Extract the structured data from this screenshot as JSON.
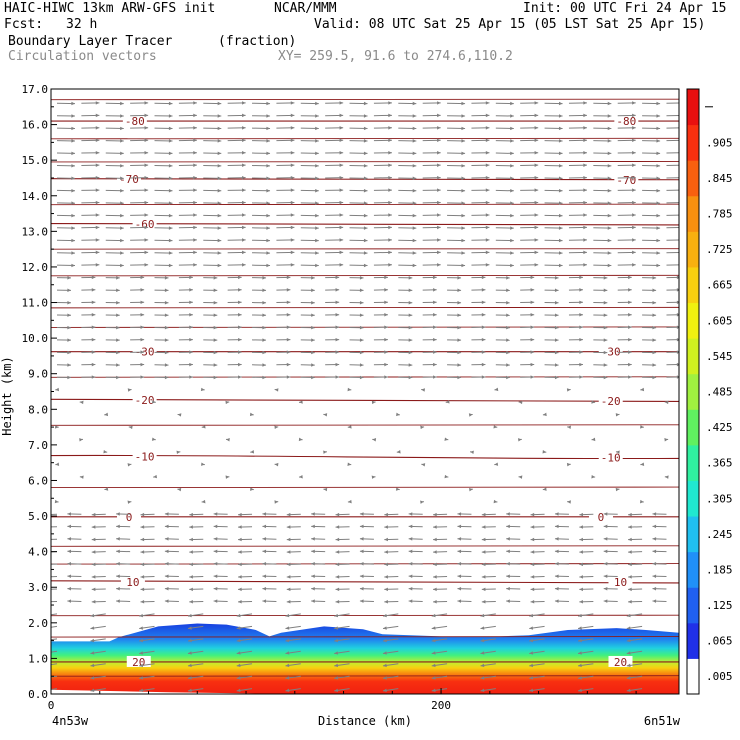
{
  "header": {
    "model": "HAIC-HIWC 13km ARW-GFS init",
    "org": "NCAR/MMM",
    "init": "Init: 00 UTC Fri 24 Apr 15",
    "fcst_label": "Fcst:",
    "fcst_value": "32 h",
    "valid": "Valid: 08 UTC Sat 25 Apr 15 (05 LST Sat 25 Apr 15)",
    "field_name": "Boundary Layer Tracer",
    "field_unit": "(fraction)",
    "overlay_name": "Circulation vectors",
    "xy_range": "XY= 259.5, 91.6 to 274.6,110.2"
  },
  "chart_data": {
    "type": "heatmap",
    "title": "Boundary Layer Tracer",
    "ylabel": "Height (km)",
    "xlabel": "Distance (km)",
    "x_start_label": "4n53w",
    "x_end_label": "6n51w",
    "xlim": [
      0,
      322
    ],
    "ylim": [
      0,
      17
    ],
    "x_ticks": [
      0,
      200
    ],
    "x_tick_labels": [
      "0",
      "200"
    ],
    "y_ticks": [
      0,
      1,
      2,
      3,
      4,
      5,
      6,
      7,
      8,
      9,
      10,
      11,
      12,
      13,
      14,
      15,
      16,
      17
    ],
    "y_tick_labels": [
      "0.0",
      "1.0",
      "2.0",
      "3.0",
      "4.0",
      "5.0",
      "6.0",
      "7.0",
      "8.0",
      "9.0",
      "10.0",
      "11.0",
      "12.0",
      "13.0",
      "14.0",
      "15.0",
      "16.0",
      "17.0"
    ],
    "colorbar": {
      "labels": [
        ".005",
        ".065",
        ".125",
        ".185",
        ".245",
        ".305",
        ".365",
        ".425",
        ".485",
        ".545",
        ".605",
        ".665",
        ".725",
        ".785",
        ".845",
        ".905"
      ],
      "colors": [
        "#ffffff",
        "#2030e8",
        "#2060f0",
        "#2090f8",
        "#20c0f0",
        "#20e8d0",
        "#30f0a0",
        "#60f060",
        "#a0f040",
        "#d0f020",
        "#f0f010",
        "#f8d010",
        "#f8b010",
        "#f89010",
        "#f86010",
        "#f83010",
        "#e81010"
      ]
    },
    "bl_top_km": [
      [
        0,
        1.48
      ],
      [
        30,
        1.48
      ],
      [
        35,
        1.6
      ],
      [
        55,
        1.9
      ],
      [
        75,
        1.98
      ],
      [
        90,
        1.95
      ],
      [
        105,
        1.8
      ],
      [
        112,
        1.62
      ],
      [
        118,
        1.72
      ],
      [
        140,
        1.9
      ],
      [
        160,
        1.82
      ],
      [
        170,
        1.68
      ],
      [
        200,
        1.62
      ],
      [
        230,
        1.62
      ],
      [
        245,
        1.65
      ],
      [
        265,
        1.8
      ],
      [
        290,
        1.85
      ],
      [
        305,
        1.8
      ],
      [
        322,
        1.72
      ]
    ],
    "isotherms_c": [
      {
        "t": 20,
        "y": [
          0.9,
          0.9
        ]
      },
      {
        "t": 10,
        "y": [
          3.18,
          3.12
        ]
      },
      {
        "t": 0,
        "y": [
          4.98,
          4.98
        ]
      },
      {
        "t": -10,
        "y": [
          6.7,
          6.62
        ]
      },
      {
        "t": -20,
        "y": [
          8.28,
          8.22
        ]
      },
      {
        "t": -30,
        "y": [
          9.62,
          9.62
        ]
      },
      {
        "t": -60,
        "y": [
          13.22,
          13.18
        ]
      },
      {
        "t": -70,
        "y": [
          14.48,
          14.45
        ]
      },
      {
        "t": -80,
        "y": [
          16.1,
          16.1
        ]
      }
    ],
    "isotherm_labels": [
      {
        "text": "20",
        "x": 45,
        "y": 0.9
      },
      {
        "text": "20",
        "x": 292,
        "y": 0.9
      },
      {
        "text": "10",
        "x": 42,
        "y": 3.15
      },
      {
        "text": "10",
        "x": 292,
        "y": 3.15
      },
      {
        "text": "0",
        "x": 40,
        "y": 4.98
      },
      {
        "text": "0",
        "x": 282,
        "y": 4.98
      },
      {
        "text": "-10",
        "x": 48,
        "y": 6.67
      },
      {
        "text": "-10",
        "x": 287,
        "y": 6.64
      },
      {
        "text": "-20",
        "x": 48,
        "y": 8.26
      },
      {
        "text": "-20",
        "x": 287,
        "y": 8.24
      },
      {
        "text": "-30",
        "x": 48,
        "y": 9.62
      },
      {
        "text": "-30",
        "x": 287,
        "y": 9.62
      },
      {
        "text": "-60",
        "x": 48,
        "y": 13.2
      },
      {
        "text": "-70",
        "x": 40,
        "y": 14.47
      },
      {
        "text": "-70",
        "x": 295,
        "y": 14.45
      },
      {
        "text": "-80",
        "x": 43,
        "y": 16.1
      },
      {
        "text": "-80",
        "x": 295,
        "y": 16.1
      }
    ],
    "isotherm_color": "#8b1a1a",
    "vector_color": "#808080"
  }
}
